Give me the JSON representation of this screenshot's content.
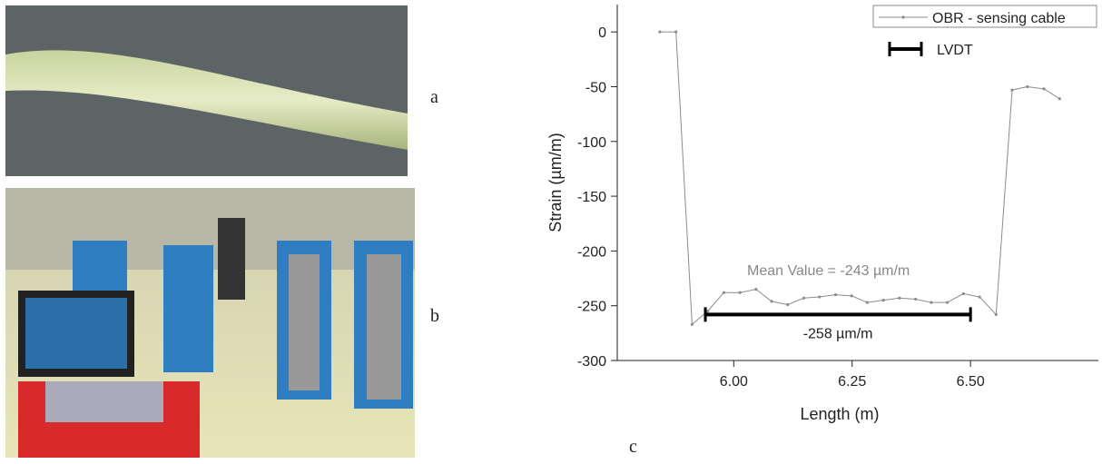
{
  "figure": {
    "panels": [
      {
        "label": "a"
      },
      {
        "label": "b"
      },
      {
        "label": "c"
      }
    ]
  },
  "chart_data": {
    "type": "line",
    "x_label": "Length (m)",
    "y_label": "Strain (µm/m)",
    "x": [
      5.844,
      5.878,
      5.912,
      5.945,
      5.979,
      6.013,
      6.047,
      6.08,
      6.114,
      6.148,
      6.181,
      6.215,
      6.249,
      6.282,
      6.316,
      6.35,
      6.384,
      6.417,
      6.451,
      6.485,
      6.519,
      6.554,
      6.588,
      6.62,
      6.655,
      6.688
    ],
    "series": [
      {
        "name": "OBR - sensing cable",
        "color": "#8c8c8c",
        "values": [
          0,
          0,
          -267,
          -255,
          -238,
          -238,
          -235,
          -246,
          -249,
          -243,
          -242,
          -240,
          -241,
          -247,
          -245,
          -243,
          -244,
          -247,
          -247,
          -239,
          -242,
          -258,
          -53,
          -50,
          -52,
          -61
        ]
      }
    ],
    "lvdt": {
      "name": "LVDT",
      "color": "#000000",
      "value": -258,
      "x": [
        5.94,
        6.5
      ],
      "label": "-258 µm/m"
    },
    "annotation": {
      "text": "Mean Value = -243 µm/m",
      "x": 6.2,
      "y": -222
    },
    "xlim": [
      5.754,
      6.77
    ],
    "ylim": [
      -300,
      25
    ],
    "xticks": [
      {
        "value": 6,
        "label": "6.00"
      },
      {
        "value": 6.25,
        "label": "6.25"
      },
      {
        "value": 6.5,
        "label": "6.50"
      }
    ],
    "yticks": [
      0,
      -50,
      -100,
      -150,
      -200,
      -250,
      -300
    ],
    "legend": "upper right"
  }
}
